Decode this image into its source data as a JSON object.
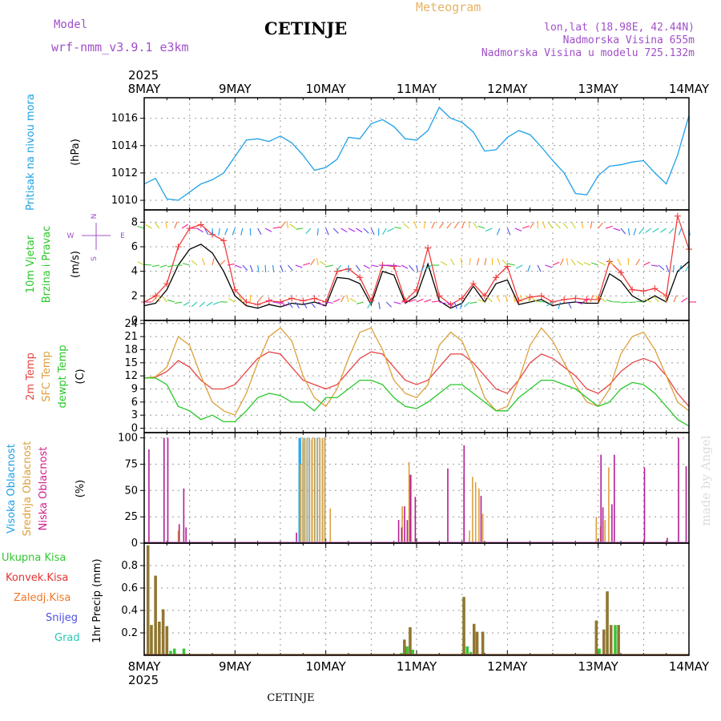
{
  "header": {
    "model_label": "Model",
    "model_name": "wrf-nmm_v3.9.1 e3km",
    "station": "CETINJE",
    "product": "Meteogram",
    "lonlat": "lon,lat (18.98E, 42.44N)",
    "elevation": "Nadmorska Visina 655m",
    "model_elevation": "Nadmorska Visina u modelu 725.132m",
    "footer_station": "CETINJE",
    "watermark": "made by Angel"
  },
  "colors": {
    "pressure": "#1ea0e6",
    "wind_speed": "#000000",
    "wind_gust": "#f03c3c",
    "temp2m": "#e64646",
    "sfc_temp": "#dca03c",
    "dewpt": "#28c828",
    "high_cloud": "#1ea0e6",
    "mid_cloud": "#dca03c",
    "low_cloud": "#b41e96",
    "total_precip": "#32c832",
    "conv_precip": "#e63232",
    "frozen_precip": "#f07828",
    "snow": "#5050e6",
    "graupel": "#28c8b4",
    "title_purple": "#a050c8",
    "product_orange": "#e6b464"
  },
  "chart_data": [
    {
      "type": "line",
      "title": "Pritisak na nivou mora",
      "ylabel": "(hPa)",
      "ylim": [
        1009.3,
        1017.5
      ],
      "yticks": [
        1010,
        1012,
        1014,
        1016
      ],
      "x_unit": "hours from 8MAY 00UTC",
      "x": [
        0,
        3,
        6,
        9,
        12,
        15,
        18,
        21,
        24,
        27,
        30,
        33,
        36,
        39,
        42,
        45,
        48,
        51,
        54,
        57,
        60,
        63,
        66,
        69,
        72,
        75,
        78,
        81,
        84,
        87,
        90,
        93,
        96,
        99,
        102,
        105,
        108,
        111,
        114,
        117,
        120,
        123,
        126,
        129,
        132,
        135,
        138,
        141,
        144
      ],
      "series": [
        {
          "name": "pressure",
          "values": [
            1011.2,
            1011.6,
            1010.1,
            1010.0,
            1010.6,
            1011.2,
            1011.5,
            1012.0,
            1013.2,
            1014.4,
            1014.5,
            1014.3,
            1014.7,
            1014.2,
            1013.3,
            1012.2,
            1012.4,
            1013.0,
            1014.6,
            1014.5,
            1015.6,
            1015.9,
            1015.4,
            1014.5,
            1014.4,
            1015.1,
            1016.8,
            1016.0,
            1015.7,
            1015.0,
            1013.6,
            1013.7,
            1014.6,
            1015.1,
            1014.8,
            1013.9,
            1012.9,
            1012.0,
            1010.5,
            1010.4,
            1011.8,
            1012.5,
            1012.6,
            1012.8,
            1012.9,
            1012.0,
            1011.2,
            1013.3,
            1016.2
          ]
        }
      ]
    },
    {
      "type": "line",
      "title": "10m Vjetar Brzina i Pravac",
      "ylabel": "(m/s)",
      "ylim": [
        0,
        9
      ],
      "yticks": [
        0,
        2,
        4,
        6,
        8
      ],
      "compass": {
        "n": "N",
        "s": "S",
        "e": "E",
        "w": "W"
      },
      "x_unit": "hours from 8MAY 00UTC",
      "x": [
        0,
        3,
        6,
        9,
        12,
        15,
        18,
        21,
        24,
        27,
        30,
        33,
        36,
        39,
        42,
        45,
        48,
        51,
        54,
        57,
        60,
        63,
        66,
        69,
        72,
        75,
        78,
        81,
        84,
        87,
        90,
        93,
        96,
        99,
        102,
        105,
        108,
        111,
        114,
        117,
        120,
        123,
        126,
        129,
        132,
        135,
        138,
        141,
        144
      ],
      "series": [
        {
          "name": "wind_speed",
          "values": [
            1.2,
            1.4,
            2.5,
            4.5,
            5.8,
            6.2,
            5.5,
            4.0,
            2.0,
            1.2,
            1.0,
            1.3,
            1.1,
            1.4,
            1.3,
            1.5,
            1.2,
            3.5,
            3.4,
            3.0,
            1.3,
            4.0,
            3.7,
            1.4,
            2.0,
            4.6,
            1.6,
            1.0,
            1.4,
            2.8,
            1.5,
            3.0,
            3.3,
            1.3,
            1.5,
            1.7,
            1.2,
            1.4,
            1.5,
            1.4,
            1.4,
            3.8,
            3.2,
            2.0,
            1.5,
            2.0,
            1.5,
            4.0,
            4.8
          ]
        },
        {
          "name": "wind_gust",
          "values": [
            1.5,
            2.0,
            3.0,
            6.0,
            7.5,
            7.8,
            7.0,
            6.5,
            2.5,
            1.5,
            1.3,
            1.6,
            1.5,
            1.8,
            1.6,
            1.8,
            1.5,
            4.0,
            4.2,
            3.5,
            1.6,
            4.5,
            4.4,
            1.6,
            2.5,
            5.9,
            2.0,
            1.3,
            1.8,
            3.0,
            2.0,
            3.5,
            4.4,
            1.6,
            1.9,
            2.0,
            1.5,
            1.7,
            1.8,
            1.7,
            1.7,
            4.8,
            3.9,
            2.5,
            2.4,
            2.6,
            2.0,
            8.5,
            5.8
          ]
        }
      ]
    },
    {
      "type": "line",
      "title": "2m Temp / SFC Temp / dewpt Temp",
      "ylabel": "(C)",
      "ylim": [
        -1,
        24.7
      ],
      "yticks": [
        0,
        3,
        6,
        9,
        12,
        15,
        18,
        21,
        24
      ],
      "x_unit": "hours from 8MAY 00UTC",
      "x": [
        0,
        3,
        6,
        9,
        12,
        15,
        18,
        21,
        24,
        27,
        30,
        33,
        36,
        39,
        42,
        45,
        48,
        51,
        54,
        57,
        60,
        63,
        66,
        69,
        72,
        75,
        78,
        81,
        84,
        87,
        90,
        93,
        96,
        99,
        102,
        105,
        108,
        111,
        114,
        117,
        120,
        123,
        126,
        129,
        132,
        135,
        138,
        141,
        144
      ],
      "series": [
        {
          "name": "temp2m",
          "values": [
            11.5,
            11.7,
            13,
            15.5,
            14,
            11,
            9,
            9,
            10,
            13,
            16,
            17.5,
            17,
            14,
            11,
            10,
            9,
            10,
            13,
            16,
            17.5,
            17,
            14,
            11,
            10,
            11,
            14,
            17,
            17,
            15,
            12,
            9,
            8,
            11,
            15,
            17,
            16,
            14,
            12,
            9,
            8,
            10,
            13,
            15,
            16,
            15,
            12,
            8,
            5
          ]
        },
        {
          "name": "sfc_temp",
          "values": [
            11.5,
            11.8,
            14,
            21,
            19,
            12,
            6,
            4,
            3,
            8,
            15,
            21,
            23,
            20,
            12,
            7,
            5,
            9,
            16,
            22,
            23,
            18,
            11,
            8,
            7,
            10,
            19,
            22,
            20,
            14,
            7,
            4,
            5,
            11,
            19,
            23,
            20,
            15,
            10,
            6,
            5,
            9,
            17,
            21,
            22,
            18,
            12,
            6,
            4
          ]
        },
        {
          "name": "dewpt",
          "values": [
            11.5,
            11.5,
            10,
            5,
            4,
            2,
            3,
            1.5,
            1.5,
            4,
            7,
            8,
            7.5,
            6,
            6,
            4,
            7,
            7,
            9,
            11,
            11,
            10,
            7,
            5,
            4.5,
            6,
            8,
            10,
            10,
            8,
            6,
            4,
            4,
            7,
            9,
            11,
            11,
            10,
            9,
            7,
            5,
            6,
            9,
            10.5,
            10,
            8,
            5,
            2,
            0.5
          ]
        }
      ]
    },
    {
      "type": "bar",
      "title": "Visoka Oblacnost / Srednja Oblacnost / Niska Oblacnost",
      "ylabel": "(%)",
      "ylim": [
        0,
        105
      ],
      "yticks": [
        0,
        25,
        50,
        75,
        100
      ],
      "x_unit": "hours from 8MAY 00UTC",
      "series": [
        {
          "name": "high_cloud",
          "points": [
            [
              41.2,
              100
            ],
            [
              41.6,
              100
            ],
            [
              42.2,
              97
            ],
            [
              42.7,
              100
            ],
            [
              43.3,
              99
            ],
            [
              43.9,
              100
            ],
            [
              44.6,
              98
            ],
            [
              45.3,
              100
            ],
            [
              46.0,
              100
            ],
            [
              46.7,
              100
            ],
            [
              47.4,
              99
            ],
            [
              48.0,
              100
            ]
          ]
        },
        {
          "name": "mid_cloud",
          "points": [
            [
              9,
              12
            ],
            [
              41.4,
              75
            ],
            [
              42.0,
              100
            ],
            [
              42.5,
              99
            ],
            [
              43.1,
              100
            ],
            [
              43.7,
              100
            ],
            [
              44.4,
              100
            ],
            [
              45.1,
              100
            ],
            [
              45.8,
              99
            ],
            [
              46.4,
              100
            ],
            [
              47.1,
              100
            ],
            [
              47.8,
              100
            ],
            [
              49.2,
              33
            ],
            [
              68.2,
              35
            ],
            [
              70.0,
              77
            ],
            [
              70.6,
              65
            ],
            [
              84.5,
              65
            ],
            [
              86.0,
              12
            ],
            [
              86.8,
              63
            ],
            [
              87.6,
              58
            ],
            [
              88.5,
              52
            ],
            [
              89.5,
              28
            ],
            [
              119.5,
              25
            ],
            [
              120.6,
              16
            ],
            [
              121.8,
              22
            ],
            [
              122.8,
              72
            ]
          ]
        },
        {
          "name": "low_cloud",
          "points": [
            [
              1,
              89
            ],
            [
              5,
              100
            ],
            [
              6,
              100
            ],
            [
              9,
              18
            ],
            [
              10.2,
              52
            ],
            [
              10.8,
              15
            ],
            [
              40,
              10
            ],
            [
              67,
              22
            ],
            [
              67.8,
              15
            ],
            [
              68.6,
              35
            ],
            [
              69.3,
              22
            ],
            [
              70.1,
              65
            ],
            [
              71.4,
              44
            ],
            [
              80,
              71
            ],
            [
              88.8,
              45
            ],
            [
              84.3,
              93
            ],
            [
              120.5,
              84
            ],
            [
              121,
              34
            ],
            [
              123.4,
              37
            ],
            [
              124,
              84
            ],
            [
              132,
              72
            ],
            [
              138,
              5
            ],
            [
              141,
              100
            ],
            [
              143,
              73
            ]
          ]
        }
      ]
    },
    {
      "type": "bar",
      "title": "1hr Precip",
      "ylabel": "(mm)",
      "ylim": [
        0,
        1.0
      ],
      "yticks": [
        0.2,
        0.4,
        0.6,
        0.8
      ],
      "legend": [
        "Ukupna Kisa",
        "Konvek.Kisa",
        "Zaledj.Kisa",
        "Snijeg",
        "Grad"
      ],
      "x_unit": "hours from 8MAY 00UTC",
      "series": [
        {
          "name": "total_precip",
          "points": [
            [
              1.0,
              0.98
            ],
            [
              1.9,
              0.27
            ],
            [
              3.0,
              0.71
            ],
            [
              4.0,
              0.3
            ],
            [
              5.0,
              0.41
            ],
            [
              6.0,
              0.26
            ],
            [
              7.0,
              0.04
            ],
            [
              8.0,
              0.06
            ],
            [
              10.5,
              0.06
            ],
            [
              68.0,
              0.02
            ],
            [
              68.8,
              0.14
            ],
            [
              69.5,
              0.08
            ],
            [
              70.3,
              0.25
            ],
            [
              71.0,
              0.05
            ],
            [
              84.5,
              0.52
            ],
            [
              85.4,
              0.08
            ],
            [
              86.3,
              0.03
            ],
            [
              87.2,
              0.28
            ],
            [
              88.0,
              0.21
            ],
            [
              89.5,
              0.21
            ],
            [
              90.4,
              0.01
            ],
            [
              119.5,
              0.31
            ],
            [
              120.3,
              0.06
            ],
            [
              121.5,
              0.23
            ],
            [
              122.4,
              0.57
            ],
            [
              123.4,
              0.27
            ],
            [
              124.5,
              0.27
            ],
            [
              125.4,
              0.27
            ]
          ]
        },
        {
          "name": "conv_precip",
          "points": [
            [
              1.0,
              0.98
            ],
            [
              1.9,
              0.27
            ],
            [
              3.0,
              0.71
            ],
            [
              4.0,
              0.3
            ],
            [
              5.0,
              0.41
            ],
            [
              6.0,
              0.26
            ],
            [
              68.8,
              0.14
            ],
            [
              70.3,
              0.25
            ],
            [
              84.5,
              0.52
            ],
            [
              87.2,
              0.28
            ],
            [
              88.0,
              0.21
            ],
            [
              89.5,
              0.21
            ],
            [
              119.5,
              0.31
            ],
            [
              121.5,
              0.23
            ],
            [
              122.4,
              0.57
            ],
            [
              123.4,
              0.27
            ],
            [
              125.4,
              0.27
            ]
          ]
        }
      ]
    }
  ],
  "x_axis": {
    "year": "2025",
    "labels": [
      "8MAY",
      "9MAY",
      "10MAY",
      "11MAY",
      "12MAY",
      "13MAY",
      "14MAY"
    ]
  }
}
